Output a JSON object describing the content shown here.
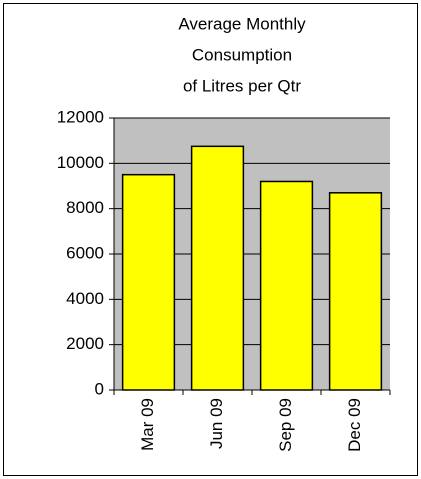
{
  "chart_data": {
    "type": "bar",
    "title": [
      "Average Monthly",
      "Consumption",
      "of Litres per Qtr"
    ],
    "categories": [
      "Mar 09",
      "Jun 09",
      "Sep 09",
      "Dec 09"
    ],
    "values": [
      9500,
      10750,
      9200,
      8700
    ],
    "color": "#ffff00",
    "ylim": [
      0,
      12000
    ],
    "yticks": [
      0,
      2000,
      4000,
      6000,
      8000,
      10000,
      12000
    ],
    "grid": true
  }
}
